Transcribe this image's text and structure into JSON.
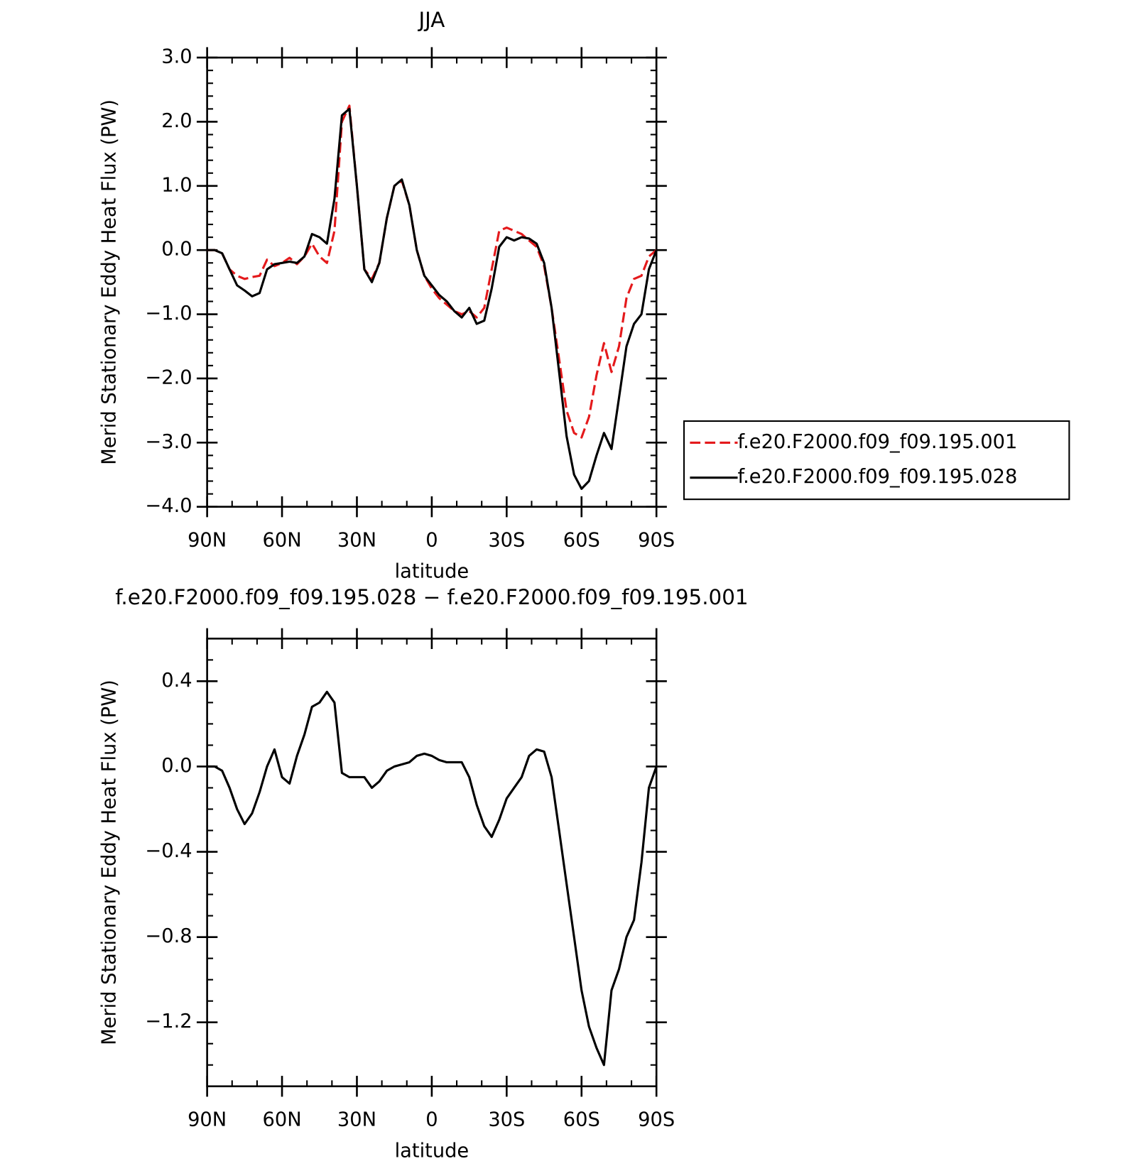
{
  "chart_data": [
    {
      "type": "line",
      "title": "JJA",
      "xlabel": "latitude",
      "ylabel": "Merid Stationary Eddy Heat Flux (PW)",
      "xlim": [
        90,
        -90
      ],
      "xticks": [
        {
          "value": 90,
          "label": "90N"
        },
        {
          "value": 60,
          "label": "60N"
        },
        {
          "value": 30,
          "label": "30N"
        },
        0,
        {
          "value": -30,
          "label": "30S"
        },
        {
          "value": -60,
          "label": "60S"
        },
        {
          "value": -90,
          "label": "90S"
        }
      ],
      "ylim": [
        -4,
        3
      ],
      "yticks": [
        {
          "value": 3,
          "label": "3.0"
        },
        {
          "value": 2,
          "label": "2.0"
        },
        {
          "value": 1,
          "label": "1.0"
        },
        {
          "value": 0,
          "label": "0.0"
        },
        {
          "value": -1,
          "label": "−1.0"
        },
        {
          "value": -2,
          "label": "−2.0"
        },
        {
          "value": -3,
          "label": "−3.0"
        },
        {
          "value": -4,
          "label": "−4.0"
        }
      ],
      "legend": "right",
      "x": [
        90,
        87,
        84,
        81,
        78,
        75,
        72,
        69,
        66,
        63,
        60,
        57,
        54,
        51,
        48,
        45,
        42,
        39,
        36,
        33,
        30,
        27,
        24,
        21,
        18,
        15,
        12,
        9,
        6,
        3,
        0,
        -3,
        -6,
        -9,
        -12,
        -15,
        -18,
        -21,
        -24,
        -27,
        -30,
        -33,
        -36,
        -39,
        -42,
        -45,
        -48,
        -51,
        -54,
        -57,
        -60,
        -63,
        -66,
        -69,
        -72,
        -75,
        -78,
        -81,
        -84,
        -87,
        -90
      ],
      "series": [
        {
          "name": "f.e20.F2000.f09_f09.195.001",
          "color": "#e41a1c",
          "line_style": "dashed",
          "values": [
            0,
            0,
            -0.05,
            -0.3,
            -0.4,
            -0.45,
            -0.42,
            -0.4,
            -0.15,
            -0.25,
            -0.2,
            -0.12,
            -0.22,
            -0.1,
            0.1,
            -0.1,
            -0.2,
            0.3,
            2.0,
            2.25,
            1.0,
            -0.3,
            -0.45,
            -0.2,
            0.5,
            1.0,
            1.08,
            0.7,
            0.0,
            -0.4,
            -0.6,
            -0.75,
            -0.85,
            -0.95,
            -1.0,
            -0.95,
            -1.05,
            -0.9,
            -0.3,
            0.3,
            0.35,
            0.3,
            0.25,
            0.15,
            0.05,
            -0.25,
            -0.9,
            -1.7,
            -2.5,
            -2.85,
            -2.92,
            -2.6,
            -1.95,
            -1.45,
            -1.9,
            -1.5,
            -0.75,
            -0.45,
            -0.4,
            -0.1,
            0
          ]
        },
        {
          "name": "f.e20.F2000.f09_f09.195.028",
          "color": "#000000",
          "line_style": "solid",
          "values": [
            0,
            0,
            -0.05,
            -0.3,
            -0.55,
            -0.63,
            -0.72,
            -0.67,
            -0.3,
            -0.22,
            -0.2,
            -0.18,
            -0.2,
            -0.1,
            0.25,
            0.2,
            0.1,
            0.8,
            2.1,
            2.2,
            1.0,
            -0.3,
            -0.5,
            -0.2,
            0.5,
            1.0,
            1.1,
            0.7,
            0.0,
            -0.4,
            -0.55,
            -0.7,
            -0.8,
            -0.95,
            -1.05,
            -0.9,
            -1.15,
            -1.1,
            -0.6,
            0.05,
            0.2,
            0.15,
            0.2,
            0.18,
            0.1,
            -0.2,
            -0.9,
            -1.9,
            -2.9,
            -3.5,
            -3.72,
            -3.6,
            -3.2,
            -2.85,
            -3.1,
            -2.3,
            -1.5,
            -1.15,
            -1.0,
            -0.3,
            0
          ]
        }
      ]
    },
    {
      "type": "line",
      "title": "f.e20.F2000.f09_f09.195.028 − f.e20.F2000.f09_f09.195.001",
      "xlabel": "latitude",
      "ylabel": "Merid Stationary Eddy Heat Flux (PW)",
      "xlim": [
        90,
        -90
      ],
      "xticks": [
        {
          "value": 90,
          "label": "90N"
        },
        {
          "value": 60,
          "label": "60N"
        },
        {
          "value": 30,
          "label": "30N"
        },
        0,
        {
          "value": -30,
          "label": "30S"
        },
        {
          "value": -60,
          "label": "60S"
        },
        {
          "value": -90,
          "label": "90S"
        }
      ],
      "ylim": [
        -1.5,
        0.6
      ],
      "yticks": [
        {
          "value": 0.4,
          "label": "0.4"
        },
        {
          "value": 0,
          "label": "0.0"
        },
        {
          "value": -0.4,
          "label": "−0.4"
        },
        {
          "value": -0.8,
          "label": "−0.8"
        },
        {
          "value": -1.2,
          "label": "−1.2"
        }
      ],
      "color": "#000000",
      "x": [
        90,
        87,
        84,
        81,
        78,
        75,
        72,
        69,
        66,
        63,
        60,
        57,
        54,
        51,
        48,
        45,
        42,
        39,
        36,
        33,
        30,
        27,
        24,
        21,
        18,
        15,
        12,
        9,
        6,
        3,
        0,
        -3,
        -6,
        -9,
        -12,
        -15,
        -18,
        -21,
        -24,
        -27,
        -30,
        -33,
        -36,
        -39,
        -42,
        -45,
        -48,
        -51,
        -54,
        -57,
        -60,
        -63,
        -66,
        -69,
        -72,
        -75,
        -78,
        -81,
        -84,
        -87,
        -90
      ],
      "values": [
        0,
        0,
        -0.02,
        -0.1,
        -0.2,
        -0.27,
        -0.22,
        -0.12,
        0.0,
        0.08,
        -0.05,
        -0.08,
        0.05,
        0.15,
        0.28,
        0.3,
        0.35,
        0.3,
        -0.03,
        -0.05,
        -0.05,
        -0.05,
        -0.1,
        -0.07,
        -0.02,
        0.0,
        0.01,
        0.02,
        0.05,
        0.06,
        0.05,
        0.03,
        0.02,
        0.02,
        0.02,
        -0.05,
        -0.18,
        -0.28,
        -0.33,
        -0.25,
        -0.15,
        -0.1,
        -0.05,
        0.05,
        0.08,
        0.07,
        -0.05,
        -0.3,
        -0.55,
        -0.8,
        -1.05,
        -1.22,
        -1.32,
        -1.4,
        -1.05,
        -0.95,
        -0.8,
        -0.72,
        -0.45,
        -0.1,
        0
      ]
    }
  ]
}
